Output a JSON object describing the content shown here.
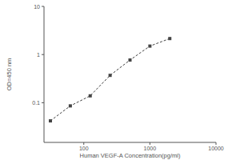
{
  "chart_data": {
    "type": "line",
    "log": true,
    "x_label": "Human VEGF-A Concentration(pg/ml)",
    "y_label": "OD=450 nm",
    "x": [
      31.25,
      62.5,
      125,
      250,
      500,
      1000,
      2000
    ],
    "series": [
      {
        "values": [
          0.042,
          0.086,
          0.139,
          0.37,
          0.77,
          1.5,
          2.15
        ],
        "color": "#444444",
        "marker": "square",
        "line_style": "dashed"
      }
    ],
    "xlim": [
      25,
      10000
    ],
    "xticks": [
      100,
      1000,
      10000
    ],
    "ylim": [
      0.015,
      10
    ],
    "yticks": [
      0.1,
      1,
      10
    ],
    "grid": false
  }
}
